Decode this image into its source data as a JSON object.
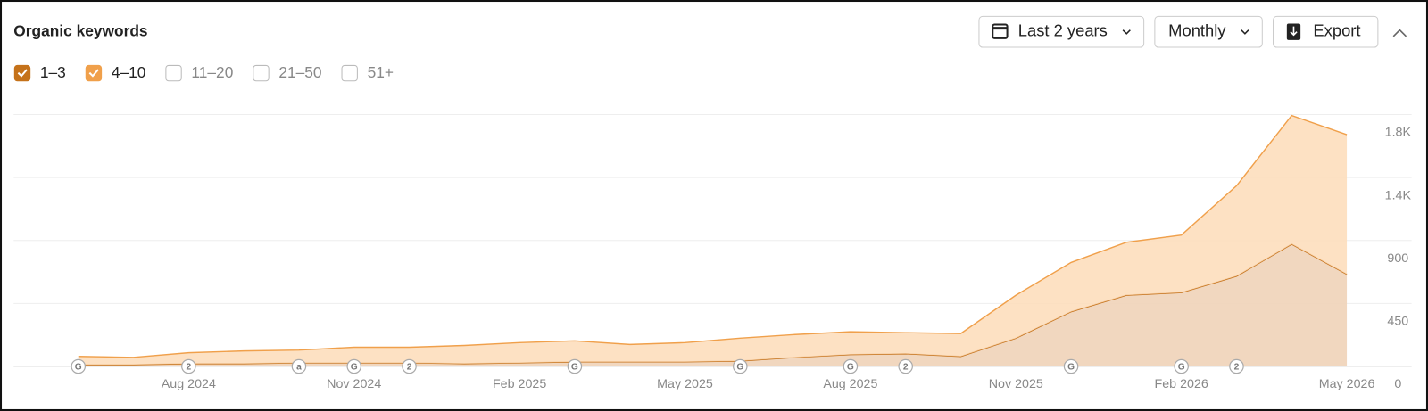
{
  "chart_data": {
    "type": "stacked-area",
    "title": "Organic keywords",
    "controls": {
      "range": "Last 2 years",
      "interval": "Monthly",
      "export": "Export"
    },
    "categories": [
      null,
      null,
      "Aug 2024",
      null,
      null,
      "Nov 2024",
      null,
      null,
      "Feb 2025",
      null,
      null,
      "May 2025",
      null,
      null,
      "Aug 2025",
      null,
      null,
      "Nov 2025",
      null,
      null,
      "Feb 2026",
      null,
      null,
      "May 2026"
    ],
    "series": [
      {
        "name": "1–3",
        "color": "#c5721a",
        "fill": "#f0d3b8",
        "checked": true,
        "values": [
          13,
          13,
          20,
          20,
          26,
          26,
          26,
          20,
          26,
          33,
          33,
          33,
          39,
          65,
          85,
          91,
          72,
          202,
          391,
          509,
          528,
          645,
          874,
          659
        ]
      },
      {
        "name": "4–10",
        "color": "#f0a04b",
        "fill": "#fddcb9",
        "checked": true,
        "values": [
          59,
          52,
          78,
          91,
          91,
          111,
          111,
          130,
          144,
          150,
          124,
          137,
          163,
          163,
          163,
          150,
          163,
          307,
          352,
          378,
          411,
          646,
          919,
          997
        ]
      }
    ],
    "unchecked_filters": [
      "11–20",
      "21–50",
      "51+"
    ],
    "annotations": [
      {
        "at": 0,
        "label": "G"
      },
      {
        "at": 2,
        "label": "2"
      },
      {
        "at": 4,
        "label": "a"
      },
      {
        "at": 5,
        "label": "G"
      },
      {
        "at": 6,
        "label": "2"
      },
      {
        "at": 9,
        "label": "G"
      },
      {
        "at": 12,
        "label": "G"
      },
      {
        "at": 14,
        "label": "G"
      },
      {
        "at": 15,
        "label": "2"
      },
      {
        "at": 18,
        "label": "G"
      },
      {
        "at": 20,
        "label": "G"
      },
      {
        "at": 21,
        "label": "2"
      }
    ],
    "ylim": [
      0,
      1800
    ],
    "yticks": [
      0,
      450,
      900,
      {
        "value": 1350,
        "label": "1.4K"
      },
      {
        "value": 1800,
        "label": "1.8K"
      }
    ],
    "grid": true
  }
}
